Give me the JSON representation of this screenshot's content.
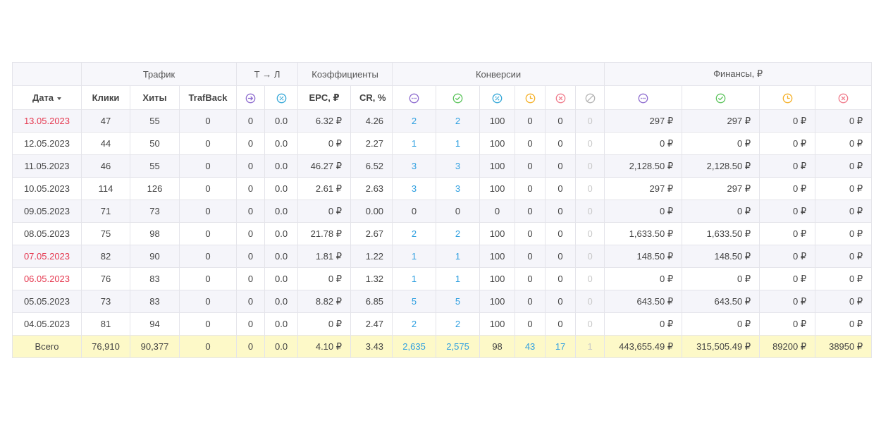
{
  "groups": {
    "traffic": "Трафик",
    "tl": "Т → Л",
    "coef": "Коэффициенты",
    "conv": "Конверсии",
    "fin": "Финансы, ₽"
  },
  "headers": {
    "date": "Дата",
    "clicks": "Клики",
    "hits": "Хиты",
    "trafback": "TrafBack",
    "epc": "EPC, ₽",
    "cr": "CR, %"
  },
  "icons": {
    "tl": [
      "arrow-right-circle-icon",
      "percent-circle-icon"
    ],
    "conv": [
      "pending-dots-icon",
      "approved-check-icon",
      "percent-circle-icon",
      "hold-clock-icon",
      "rejected-x-icon",
      "trash-slash-icon"
    ],
    "fin": [
      "pending-dots-icon",
      "approved-check-icon",
      "hold-clock-icon",
      "rejected-x-icon"
    ]
  },
  "colors": {
    "purple": "#8e6ccf",
    "green": "#5cc45c",
    "cyan": "#35a8d8",
    "orange": "#f5b027",
    "red": "#f07c8c",
    "gray": "#b5b5b5",
    "weekend_date": "#e53950",
    "link_blue": "#2e9fe0",
    "total_row": "#fdf9c8"
  },
  "rows": [
    {
      "date": "13.05.2023",
      "weekend": true,
      "clicks": "47",
      "hits": "55",
      "trafback": "0",
      "tl_a": "0",
      "tl_b": "0.0",
      "epc": "6.32 ₽",
      "cr": "4.26",
      "c1": "2",
      "c2": "2",
      "c3": "100",
      "c4": "0",
      "c5": "0",
      "c6": "0",
      "f1": "297 ₽",
      "f2": "297 ₽",
      "f3": "0 ₽",
      "f4": "0 ₽"
    },
    {
      "date": "12.05.2023",
      "weekend": false,
      "clicks": "44",
      "hits": "50",
      "trafback": "0",
      "tl_a": "0",
      "tl_b": "0.0",
      "epc": "0 ₽",
      "cr": "2.27",
      "c1": "1",
      "c2": "1",
      "c3": "100",
      "c4": "0",
      "c5": "0",
      "c6": "0",
      "f1": "0 ₽",
      "f2": "0 ₽",
      "f3": "0 ₽",
      "f4": "0 ₽"
    },
    {
      "date": "11.05.2023",
      "weekend": false,
      "clicks": "46",
      "hits": "55",
      "trafback": "0",
      "tl_a": "0",
      "tl_b": "0.0",
      "epc": "46.27 ₽",
      "cr": "6.52",
      "c1": "3",
      "c2": "3",
      "c3": "100",
      "c4": "0",
      "c5": "0",
      "c6": "0",
      "f1": "2,128.50 ₽",
      "f2": "2,128.50 ₽",
      "f3": "0 ₽",
      "f4": "0 ₽"
    },
    {
      "date": "10.05.2023",
      "weekend": false,
      "clicks": "114",
      "hits": "126",
      "trafback": "0",
      "tl_a": "0",
      "tl_b": "0.0",
      "epc": "2.61 ₽",
      "cr": "2.63",
      "c1": "3",
      "c2": "3",
      "c3": "100",
      "c4": "0",
      "c5": "0",
      "c6": "0",
      "f1": "297 ₽",
      "f2": "297 ₽",
      "f3": "0 ₽",
      "f4": "0 ₽"
    },
    {
      "date": "09.05.2023",
      "weekend": false,
      "clicks": "71",
      "hits": "73",
      "trafback": "0",
      "tl_a": "0",
      "tl_b": "0.0",
      "epc": "0 ₽",
      "cr": "0.00",
      "c1": "0",
      "c2": "0",
      "c3": "0",
      "c4": "0",
      "c5": "0",
      "c6": "0",
      "f1": "0 ₽",
      "f2": "0 ₽",
      "f3": "0 ₽",
      "f4": "0 ₽"
    },
    {
      "date": "08.05.2023",
      "weekend": false,
      "clicks": "75",
      "hits": "98",
      "trafback": "0",
      "tl_a": "0",
      "tl_b": "0.0",
      "epc": "21.78 ₽",
      "cr": "2.67",
      "c1": "2",
      "c2": "2",
      "c3": "100",
      "c4": "0",
      "c5": "0",
      "c6": "0",
      "f1": "1,633.50 ₽",
      "f2": "1,633.50 ₽",
      "f3": "0 ₽",
      "f4": "0 ₽"
    },
    {
      "date": "07.05.2023",
      "weekend": true,
      "clicks": "82",
      "hits": "90",
      "trafback": "0",
      "tl_a": "0",
      "tl_b": "0.0",
      "epc": "1.81 ₽",
      "cr": "1.22",
      "c1": "1",
      "c2": "1",
      "c3": "100",
      "c4": "0",
      "c5": "0",
      "c6": "0",
      "f1": "148.50 ₽",
      "f2": "148.50 ₽",
      "f3": "0 ₽",
      "f4": "0 ₽"
    },
    {
      "date": "06.05.2023",
      "weekend": true,
      "clicks": "76",
      "hits": "83",
      "trafback": "0",
      "tl_a": "0",
      "tl_b": "0.0",
      "epc": "0 ₽",
      "cr": "1.32",
      "c1": "1",
      "c2": "1",
      "c3": "100",
      "c4": "0",
      "c5": "0",
      "c6": "0",
      "f1": "0 ₽",
      "f2": "0 ₽",
      "f3": "0 ₽",
      "f4": "0 ₽"
    },
    {
      "date": "05.05.2023",
      "weekend": false,
      "clicks": "73",
      "hits": "83",
      "trafback": "0",
      "tl_a": "0",
      "tl_b": "0.0",
      "epc": "8.82 ₽",
      "cr": "6.85",
      "c1": "5",
      "c2": "5",
      "c3": "100",
      "c4": "0",
      "c5": "0",
      "c6": "0",
      "f1": "643.50 ₽",
      "f2": "643.50 ₽",
      "f3": "0 ₽",
      "f4": "0 ₽"
    },
    {
      "date": "04.05.2023",
      "weekend": false,
      "clicks": "81",
      "hits": "94",
      "trafback": "0",
      "tl_a": "0",
      "tl_b": "0.0",
      "epc": "0 ₽",
      "cr": "2.47",
      "c1": "2",
      "c2": "2",
      "c3": "100",
      "c4": "0",
      "c5": "0",
      "c6": "0",
      "f1": "0 ₽",
      "f2": "0 ₽",
      "f3": "0 ₽",
      "f4": "0 ₽"
    }
  ],
  "total": {
    "label": "Всего",
    "clicks": "76,910",
    "hits": "90,377",
    "trafback": "0",
    "tl_a": "0",
    "tl_b": "0.0",
    "epc": "4.10 ₽",
    "cr": "3.43",
    "c1": "2,635",
    "c2": "2,575",
    "c3": "98",
    "c4": "43",
    "c5": "17",
    "c6": "1",
    "f1": "443,655.49 ₽",
    "f2": "315,505.49 ₽",
    "f3": "89200 ₽",
    "f4": "38950 ₽"
  }
}
